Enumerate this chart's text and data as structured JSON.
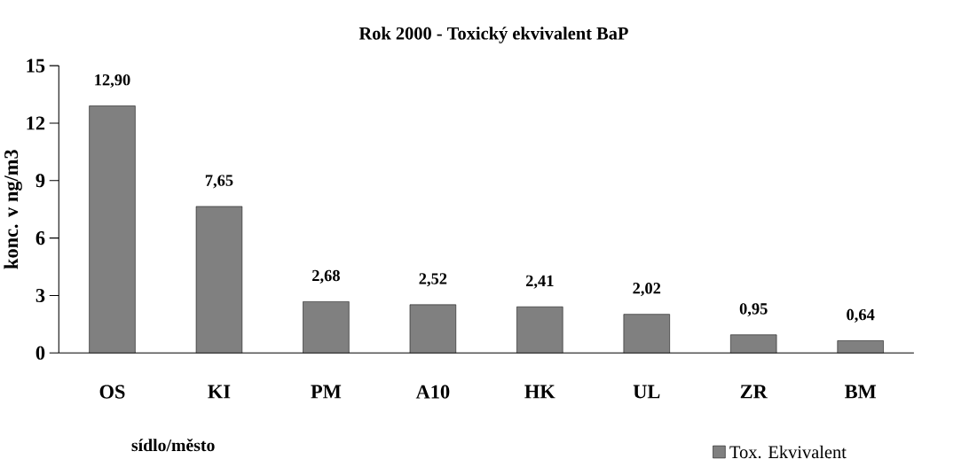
{
  "chart_data": {
    "type": "bar",
    "title": "Rok 2000 - Toxický ekvivalent BaP",
    "xlabel": "sídlo/město",
    "ylabel": "konc. v ng/m3",
    "categories": [
      "OS",
      "KI",
      "PM",
      "A10",
      "HK",
      "UL",
      "ZR",
      "BM"
    ],
    "series": [
      {
        "name": "Tox. Ekvivalent",
        "color": "#808080",
        "values": [
          12.9,
          7.65,
          2.68,
          2.52,
          2.41,
          2.02,
          0.95,
          0.64
        ],
        "value_labels": [
          "12,90",
          "7,65",
          "2,68",
          "2,52",
          "2,41",
          "2,02",
          "0,95",
          "0,64"
        ]
      }
    ],
    "ylim": [
      0,
      15
    ],
    "yticks": [
      0,
      3,
      6,
      9,
      12,
      15
    ],
    "grid": false,
    "legend": "bottom right"
  }
}
